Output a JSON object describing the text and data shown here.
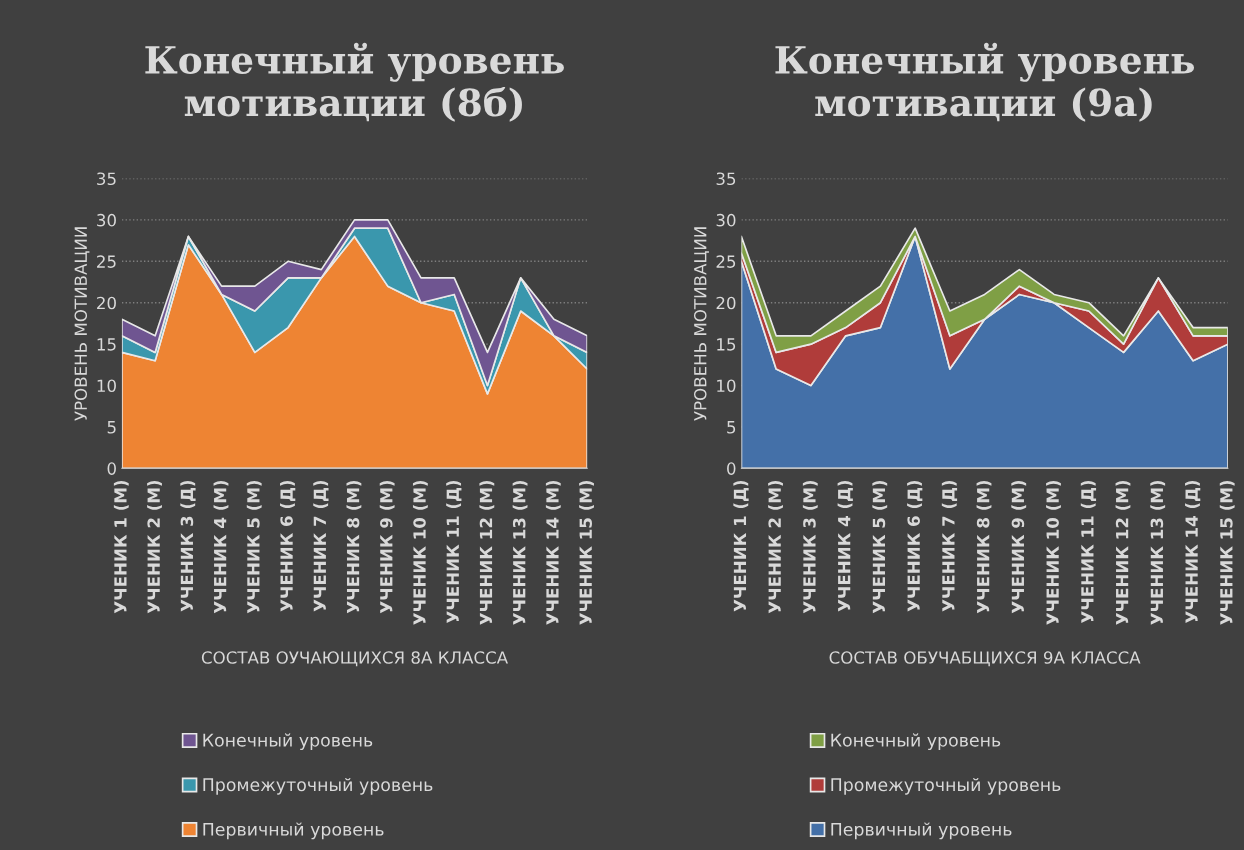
{
  "chart_data": [
    {
      "type": "area",
      "stacked": true,
      "title": "Конечный уровень\nмотивации (8б)",
      "xlabel": "СОСТАВ ОУЧАЮЩИХСЯ 8А КЛАССА",
      "ylabel": "УРОВЕНЬ МОТИВАЦИИ",
      "categories": [
        "УЧЕНИК 1 (М)",
        "УЧЕНИК 2 (М)",
        "УЧЕНИК 3 (Д)",
        "УЧЕНИК 4 (М)",
        "УЧЕНИК 5 (М)",
        "УЧЕНИК 6 (Д)",
        "УЧЕНИК 7 (Д)",
        "УЧЕНИК 8 (М)",
        "УЧЕНИК 9 (М)",
        "УЧЕНИК 10 (М)",
        "УЧЕНИК 11 (Д)",
        "УЧЕНИК 12 (М)",
        "УЧЕНИК 13 (М)",
        "УЧЕНИК 14 (М)",
        "УЧЕНИК 15 (М)"
      ],
      "series": [
        {
          "name": "Первичный уровень",
          "color": "#ee8433",
          "values": [
            14,
            13,
            27,
            21,
            14,
            17,
            23,
            28,
            22,
            20,
            19,
            9,
            19,
            16,
            12
          ]
        },
        {
          "name": "Промежуточный уровень",
          "color": "#3a97ad",
          "values": [
            2,
            1,
            1,
            0,
            5,
            6,
            0,
            1,
            7,
            0,
            2,
            1,
            4,
            0,
            2
          ]
        },
        {
          "name": "Конечный уровень",
          "color": "#6f5591",
          "values": [
            2,
            2,
            0,
            1,
            3,
            2,
            1,
            1,
            1,
            3,
            2,
            4,
            0,
            2,
            2
          ]
        }
      ],
      "ylim": [
        0,
        35
      ],
      "yticks": [
        0,
        5,
        10,
        15,
        20,
        25,
        30,
        35
      ],
      "grid": "y",
      "legend": "bottom"
    },
    {
      "type": "area",
      "stacked": true,
      "title": "Конечный уровень\nмотивации (9а)",
      "xlabel": "СОСТАВ ОБУЧАБЩИХСЯ 9А КЛАССА",
      "ylabel": "УРОВЕНЬ МОТИВАЦИИ",
      "categories": [
        "УЧЕНИК 1 (Д)",
        "УЧЕНИК 2 (М)",
        "УЧЕНИК 3 (М)",
        "УЧЕНИК 4 (Д)",
        "УЧЕНИК 5 (М)",
        "УЧЕНИК 6 (Д)",
        "УЧЕНИК 7 (Д)",
        "УЧЕНИК 8 (М)",
        "УЧЕНИК 9 (М)",
        "УЧЕНИК 10 (М)",
        "УЧЕНИК 11 (Д)",
        "УЧЕНИК 12 (М)",
        "УЧЕНИК 13 (М)",
        "УЧЕНИК 14 (Д)",
        "УЧЕНИК 15 (М)"
      ],
      "series": [
        {
          "name": "Первичный уровень",
          "color": "#4470a8",
          "values": [
            25,
            12,
            10,
            16,
            17,
            28,
            12,
            18,
            21,
            20,
            17,
            14,
            19,
            13,
            15
          ]
        },
        {
          "name": "Промежуточный уровень",
          "color": "#b03c3a",
          "values": [
            1,
            2,
            5,
            1,
            3,
            0,
            4,
            0,
            1,
            0,
            2,
            1,
            4,
            3,
            1
          ]
        },
        {
          "name": "Конечный уровень",
          "color": "#7f9f45",
          "values": [
            2,
            2,
            1,
            2,
            2,
            1,
            3,
            3,
            2,
            1,
            1,
            1,
            0,
            1,
            1
          ]
        }
      ],
      "ylim": [
        0,
        35
      ],
      "yticks": [
        0,
        5,
        10,
        15,
        20,
        25,
        30,
        35
      ],
      "grid": "y",
      "legend": "bottom"
    }
  ]
}
